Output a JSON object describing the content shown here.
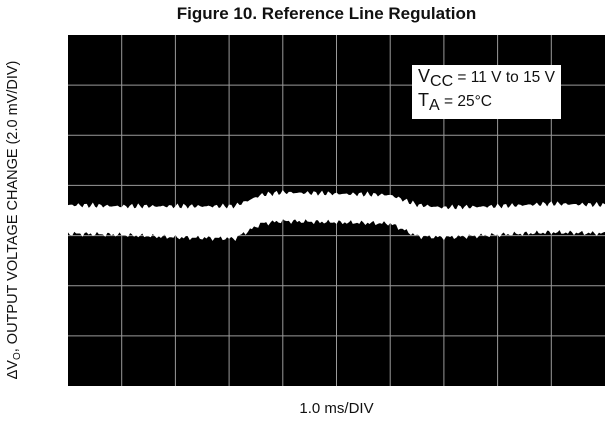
{
  "chart_data": {
    "type": "line",
    "title": "Figure 10. Reference Line Regulation",
    "ylabel": {
      "prefix": "ΔV",
      "sub": "O",
      "rest": ", OUTPUT VOLTAGE CHANGE (2.0 mV/DIV)"
    },
    "xlabel": "1.0 ms/DIV",
    "annotation": {
      "line1": {
        "sym": "V",
        "sub": "CC",
        "text": " = 11 V to 15 V"
      },
      "line2": {
        "sym": "T",
        "sub": "A",
        "text": " = 25°C"
      }
    },
    "x_divisions": 10,
    "y_divisions": 7,
    "grid": true,
    "background_color": "#000000",
    "grid_color": "#9a9a9a",
    "trace_color": "#ffffff",
    "xlim": [
      0,
      10
    ],
    "ylim": [
      -7,
      7
    ],
    "series": [
      {
        "x": [
          0,
          1,
          2,
          3.1,
          3.6,
          4,
          5,
          6,
          6.5,
          7,
          8,
          9,
          10
        ],
        "upper": [
          0.2,
          0.15,
          0.15,
          0.15,
          0.6,
          0.7,
          0.65,
          0.6,
          0.2,
          0.1,
          0.15,
          0.25,
          0.2
        ],
        "lower": [
          -0.9,
          -0.95,
          -1.05,
          -1.1,
          -0.5,
          -0.4,
          -0.45,
          -0.5,
          -1.0,
          -1.05,
          -0.95,
          -0.85,
          -0.9
        ]
      }
    ]
  }
}
